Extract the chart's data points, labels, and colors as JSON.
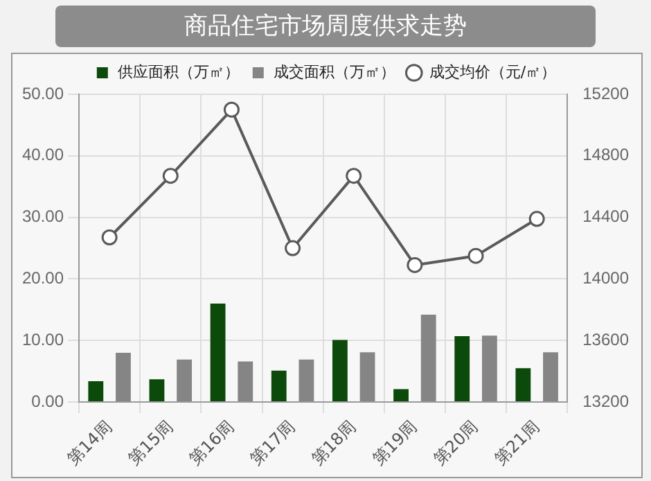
{
  "chart_data": {
    "type": "bar",
    "title": "商品住宅市场周度供求走势",
    "categories": [
      "第14周",
      "第15周",
      "第16周",
      "第17周",
      "第18周",
      "第19周",
      "第20周",
      "第21周"
    ],
    "series": [
      {
        "name": "供应面积（万㎡）",
        "color": "#0b4a0b",
        "values": [
          3.4,
          3.7,
          16.0,
          5.1,
          10.1,
          2.1,
          10.7,
          5.5
        ]
      },
      {
        "name": "成交面积（万㎡）",
        "color": "#858585",
        "values": [
          8.0,
          6.9,
          6.6,
          6.9,
          8.1,
          14.2,
          10.8,
          8.1
        ]
      },
      {
        "name": "成交均价（元/㎡）",
        "type": "line",
        "axis": "y2",
        "color": "#5a5a5a",
        "marker": "circle",
        "values": [
          14270,
          14670,
          15100,
          14200,
          14670,
          14090,
          14150,
          14390
        ]
      }
    ],
    "ylim": [
      0,
      50
    ],
    "yticks": [
      {
        "value": 0,
        "label": "0.00"
      },
      {
        "value": 10,
        "label": "10.00"
      },
      {
        "value": 20,
        "label": "20.00"
      },
      {
        "value": 30,
        "label": "30.00"
      },
      {
        "value": 40,
        "label": "40.00"
      },
      {
        "value": 50,
        "label": "50.00"
      }
    ],
    "y2lim": [
      13200,
      15200
    ],
    "y2ticks": [
      13200,
      13600,
      14000,
      14400,
      14800,
      15200
    ],
    "grid": true,
    "legend": "top"
  }
}
